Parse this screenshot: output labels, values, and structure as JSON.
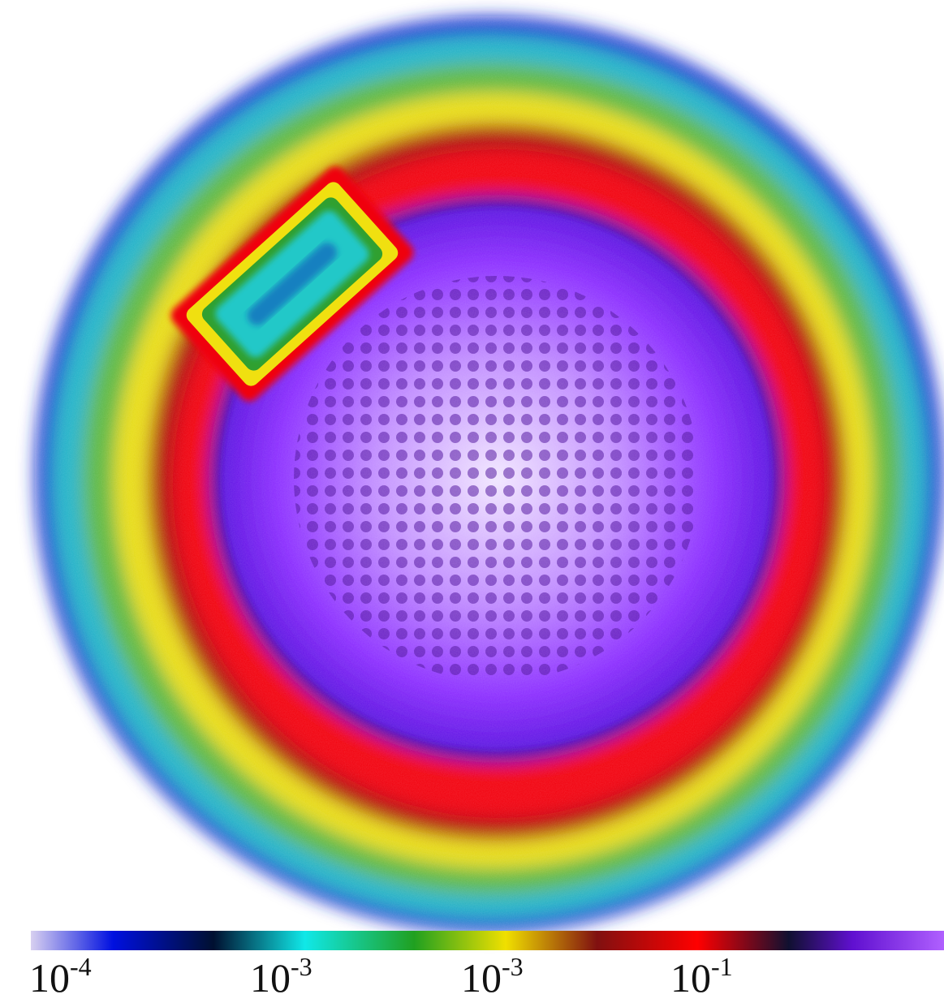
{
  "colorbar": {
    "labels": [
      {
        "base": "10",
        "exponent": "-4"
      },
      {
        "base": "10",
        "exponent": "-3"
      },
      {
        "base": "10",
        "exponent": "-3"
      },
      {
        "base": "10",
        "exponent": "-1"
      }
    ]
  }
}
